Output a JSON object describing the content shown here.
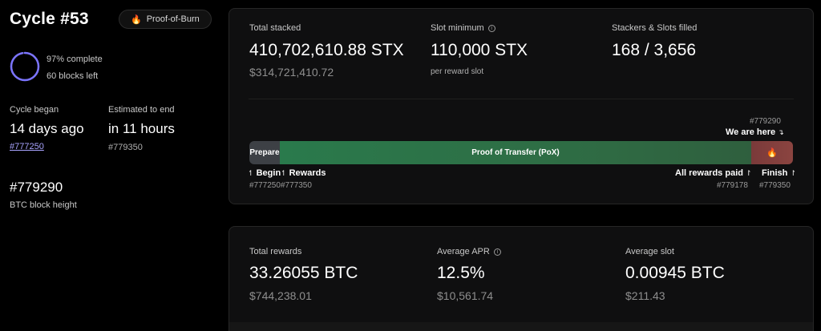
{
  "cycle": {
    "title": "Cycle #53",
    "badge_icon": "🔥",
    "badge_label": "Proof-of-Burn",
    "complete": "97% complete",
    "blocks_left": "60 blocks left",
    "progress_fraction": 0.97
  },
  "began": {
    "label": "Cycle began",
    "value": "14 days ago",
    "block": "#777250"
  },
  "end": {
    "label": "Estimated to end",
    "value": "in 11 hours",
    "block": "#779350"
  },
  "btc": {
    "value": "#779290",
    "label": "BTC block height"
  },
  "stacking": {
    "total_label": "Total stacked",
    "total_value": "410,702,610.88 STX",
    "total_usd": "$314,721,410.72",
    "slot_label": "Slot minimum",
    "slot_value": "110,000 STX",
    "slot_note": "per reward slot",
    "stackers_label": "Stackers & Slots filled",
    "stackers_value": "168 / 3,656"
  },
  "timeline": {
    "here_block": "#779290",
    "here_label": "We are here",
    "prepare_label": "Prepare",
    "pox_label": "Proof of Transfer (PoX)",
    "now_icon": "🔥",
    "begin_label": "Begin",
    "begin_block": "#777250",
    "rewards_label": "Rewards",
    "rewards_block": "#777350",
    "all_paid_label": "All rewards paid",
    "all_paid_block": "#779178",
    "finish_label": "Finish",
    "finish_block": "#779350"
  },
  "rewards": {
    "total_label": "Total rewards",
    "total_value": "33.26055 BTC",
    "total_usd": "$744,238.01",
    "apr_label": "Average APR",
    "apr_value": "12.5%",
    "apr_usd": "$10,561.74",
    "slot_label": "Average slot",
    "slot_value": "0.00945 BTC",
    "slot_usd": "$211.43"
  }
}
